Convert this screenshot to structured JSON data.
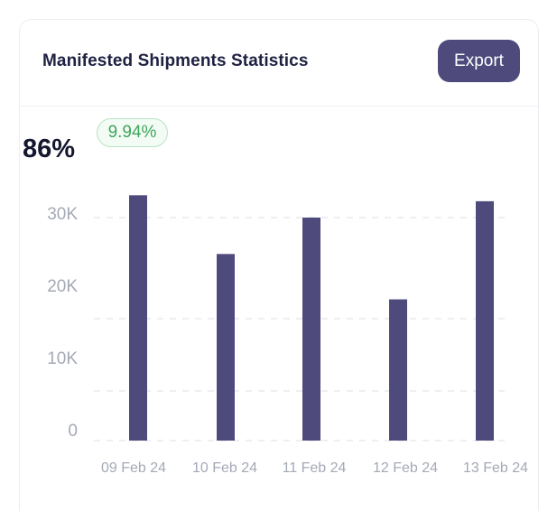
{
  "card": {
    "title": "Manifested Shipments Statistics",
    "export_label": "Export"
  },
  "summary": {
    "value": "86%",
    "change": "9.94%"
  },
  "colors": {
    "bar": "#4e4b7c",
    "accent_positive": "#3fa65b",
    "grid": "#e3e5ea",
    "tick_text": "#a5a9b6"
  },
  "chart_data": {
    "type": "bar",
    "categories": [
      "09 Feb 24",
      "10 Feb 24",
      "11 Feb 24",
      "12 Feb 24",
      "13 Feb 24"
    ],
    "values": [
      33000,
      25100,
      30000,
      19000,
      32200
    ],
    "yticks": [
      "0",
      "10K",
      "20K",
      "30K"
    ],
    "ylim": [
      0,
      30000
    ],
    "grid": true
  }
}
